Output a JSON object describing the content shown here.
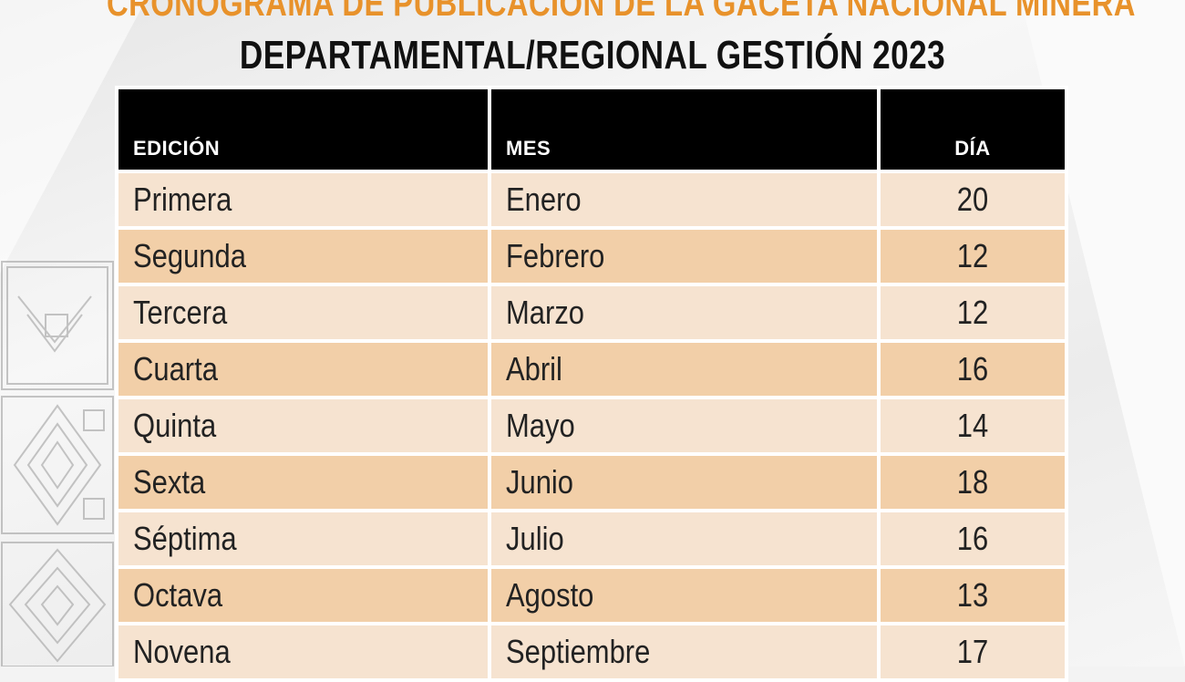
{
  "title_line1": "CRONOGRAMA DE PUBLICACIÓN DE LA GACETA NACIONAL MINERA",
  "title_line2": "DEPARTAMENTAL/REGIONAL GESTIÓN 2023",
  "colors": {
    "title_orange": "#e8922b",
    "header_bg": "#000000",
    "row_light": "#f6e3d0",
    "row_dark": "#f2cfa8"
  },
  "table": {
    "headers": [
      "EDICIÓN",
      "MES",
      "DÍA"
    ],
    "rows": [
      [
        "Primera",
        "Enero",
        "20"
      ],
      [
        "Segunda",
        "Febrero",
        "12"
      ],
      [
        "Tercera",
        "Marzo",
        "12"
      ],
      [
        "Cuarta",
        "Abril",
        "16"
      ],
      [
        "Quinta",
        "Mayo",
        "14"
      ],
      [
        "Sexta",
        "Junio",
        "18"
      ],
      [
        "Séptima",
        "Julio",
        "16"
      ],
      [
        "Octava",
        "Agosto",
        "13"
      ],
      [
        "Novena",
        "Septiembre",
        "17"
      ]
    ]
  },
  "decorations": [
    "andean-pattern-ornament"
  ]
}
